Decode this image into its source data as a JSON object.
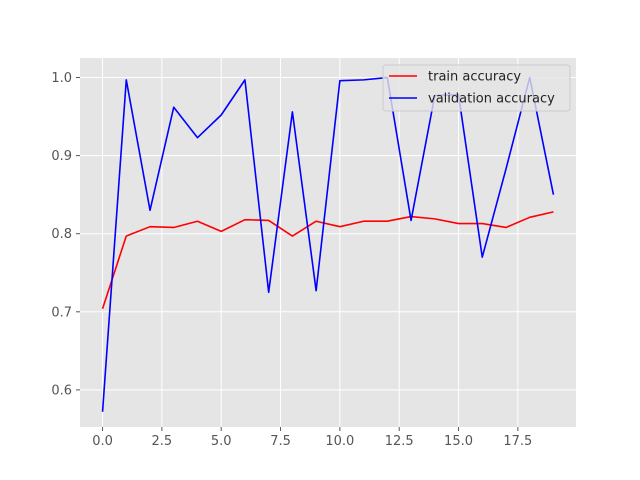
{
  "chart_data": {
    "type": "line",
    "title": "",
    "xlabel": "",
    "ylabel": "",
    "x": [
      0,
      1,
      2,
      3,
      4,
      5,
      6,
      7,
      8,
      9,
      10,
      11,
      12,
      13,
      14,
      15,
      16,
      17,
      18,
      19
    ],
    "xlim": [
      -0.95,
      19.95
    ],
    "ylim": [
      0.5525,
      1.025
    ],
    "xticks": [
      0.0,
      2.5,
      5.0,
      7.5,
      10.0,
      12.5,
      15.0,
      17.5
    ],
    "xtick_labels": [
      "0.0",
      "2.5",
      "5.0",
      "7.5",
      "10.0",
      "12.5",
      "15.0",
      "17.5"
    ],
    "yticks": [
      0.6,
      0.7,
      0.8,
      0.9,
      1.0
    ],
    "ytick_labels": [
      "0.6",
      "0.7",
      "0.8",
      "0.9",
      "1.0"
    ],
    "grid": true,
    "legend_position": "top-right",
    "background": "#e5e5e5",
    "series": [
      {
        "name": "train accuracy",
        "color": "#ff0000",
        "values": [
          0.704,
          0.797,
          0.809,
          0.808,
          0.816,
          0.803,
          0.818,
          0.817,
          0.797,
          0.816,
          0.809,
          0.816,
          0.816,
          0.822,
          0.819,
          0.813,
          0.813,
          0.808,
          0.821,
          0.828
        ]
      },
      {
        "name": "validation accuracy",
        "color": "#0000ff",
        "values": [
          0.572,
          0.997,
          0.83,
          0.962,
          0.923,
          0.952,
          0.997,
          0.725,
          0.956,
          0.727,
          0.996,
          0.997,
          1.0,
          0.817,
          0.977,
          0.978,
          0.77,
          0.883,
          1.0,
          0.85
        ]
      }
    ]
  }
}
